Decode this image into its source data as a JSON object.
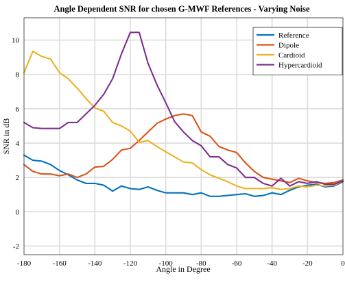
{
  "chart_data": {
    "type": "line",
    "title": "Angle Dependent SNR for chosen G-MWF References - Varying Noise",
    "xlabel": "Angle in Degree",
    "ylabel": "SNR in dB",
    "xlim": [
      -180,
      0
    ],
    "ylim": [
      -2.5,
      11.3
    ],
    "xticks": [
      -180,
      -160,
      -140,
      -120,
      -100,
      -80,
      -60,
      -40,
      -20,
      0
    ],
    "yticks": [
      -2,
      0,
      2,
      4,
      6,
      8,
      10
    ],
    "grid": true,
    "legend_position": "top-right",
    "x": [
      -180,
      -175,
      -170,
      -165,
      -160,
      -155,
      -150,
      -145,
      -140,
      -135,
      -130,
      -125,
      -120,
      -115,
      -110,
      -105,
      -100,
      -95,
      -90,
      -85,
      -80,
      -75,
      -70,
      -65,
      -60,
      -55,
      -50,
      -45,
      -40,
      -35,
      -30,
      -25,
      -20,
      -15,
      -10,
      -5,
      0
    ],
    "series": [
      {
        "name": "Reference",
        "color": "#0072BD",
        "values": [
          3.3,
          3.0,
          2.95,
          2.75,
          2.4,
          2.15,
          1.85,
          1.65,
          1.65,
          1.55,
          1.2,
          1.5,
          1.35,
          1.3,
          1.45,
          1.25,
          1.1,
          1.1,
          1.1,
          1.0,
          1.1,
          0.9,
          0.9,
          0.95,
          1.0,
          1.05,
          0.9,
          0.95,
          1.1,
          1.0,
          1.25,
          1.45,
          1.55,
          1.6,
          1.45,
          1.5,
          1.75
        ]
      },
      {
        "name": "Dipole",
        "color": "#D95319",
        "values": [
          2.75,
          2.35,
          2.2,
          2.2,
          2.1,
          2.2,
          2.0,
          2.2,
          2.6,
          2.65,
          3.05,
          3.6,
          3.7,
          4.15,
          4.65,
          5.15,
          5.4,
          5.6,
          5.7,
          5.6,
          4.65,
          4.4,
          3.8,
          3.6,
          3.45,
          2.85,
          2.35,
          2.0,
          1.9,
          1.8,
          1.7,
          1.95,
          1.8,
          1.7,
          1.65,
          1.7,
          1.85
        ]
      },
      {
        "name": "Cardioid",
        "color": "#EDB120",
        "values": [
          8.1,
          9.35,
          9.05,
          8.9,
          8.1,
          7.75,
          7.2,
          6.6,
          6.05,
          5.85,
          5.2,
          5.0,
          4.7,
          4.05,
          4.15,
          3.8,
          3.5,
          3.2,
          2.9,
          2.85,
          2.45,
          2.15,
          1.95,
          1.75,
          1.5,
          1.35,
          1.35,
          1.35,
          1.4,
          1.3,
          1.35,
          1.5,
          1.45,
          1.55,
          1.5,
          1.55,
          1.8
        ]
      },
      {
        "name": "Hypercardioid",
        "color": "#7E2F8E",
        "values": [
          5.2,
          4.9,
          4.85,
          4.85,
          4.85,
          5.2,
          5.2,
          5.7,
          6.2,
          6.85,
          7.75,
          9.2,
          10.45,
          10.45,
          8.65,
          7.4,
          6.35,
          5.25,
          4.65,
          4.15,
          3.85,
          3.2,
          3.2,
          2.75,
          2.55,
          2.0,
          2.0,
          1.65,
          1.5,
          1.95,
          1.5,
          1.75,
          1.65,
          1.75,
          1.6,
          1.6,
          1.8
        ]
      }
    ]
  }
}
